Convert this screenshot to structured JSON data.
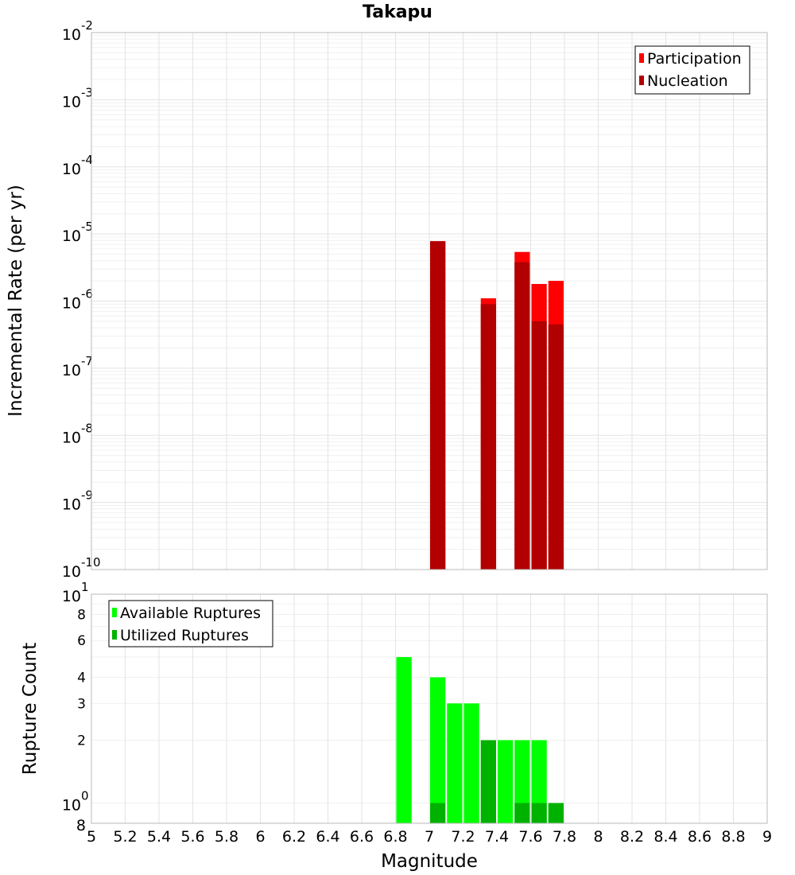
{
  "chart_data": [
    {
      "type": "bar",
      "title": "Takapu",
      "xlabel": "",
      "ylabel": "Incremental Rate (per yr)",
      "yscale": "log",
      "ylim": [
        1e-10,
        0.01
      ],
      "xlim": [
        5,
        9
      ],
      "grid": true,
      "legend_position": "top-right",
      "y_ticks": [
        {
          "base": "10",
          "exp": "-2",
          "value": 0.01
        },
        {
          "base": "10",
          "exp": "-3",
          "value": 0.001
        },
        {
          "base": "10",
          "exp": "-4",
          "value": 0.0001
        },
        {
          "base": "10",
          "exp": "-5",
          "value": 1e-05
        },
        {
          "base": "10",
          "exp": "-6",
          "value": 1e-06
        },
        {
          "base": "10",
          "exp": "-7",
          "value": 1e-07
        },
        {
          "base": "10",
          "exp": "-8",
          "value": 1e-08
        },
        {
          "base": "10",
          "exp": "-9",
          "value": 1e-09
        },
        {
          "base": "10",
          "exp": "-10",
          "value": 1e-10
        }
      ],
      "series": [
        {
          "name": "Participation",
          "color": "#ff0000",
          "points": [
            {
              "x": 7.05,
              "y": 7.8e-06
            },
            {
              "x": 7.35,
              "y": 1.1e-06
            },
            {
              "x": 7.55,
              "y": 5.4e-06
            },
            {
              "x": 7.65,
              "y": 1.8e-06
            },
            {
              "x": 7.75,
              "y": 2e-06
            }
          ]
        },
        {
          "name": "Nucleation",
          "color": "#b20000",
          "points": [
            {
              "x": 7.05,
              "y": 7.8e-06
            },
            {
              "x": 7.35,
              "y": 9e-07
            },
            {
              "x": 7.55,
              "y": 3.8e-06
            },
            {
              "x": 7.65,
              "y": 5e-07
            },
            {
              "x": 7.75,
              "y": 4.5e-07
            }
          ]
        }
      ]
    },
    {
      "type": "bar",
      "title": "",
      "xlabel": "Magnitude",
      "ylabel": "Rupture Count",
      "yscale": "log",
      "ylim": [
        0.8,
        10
      ],
      "xlim": [
        5,
        9
      ],
      "grid": true,
      "legend_position": "top-left",
      "x_ticks": [
        "5",
        "5.2",
        "5.4",
        "5.6",
        "5.8",
        "6",
        "6.2",
        "6.4",
        "6.6",
        "6.8",
        "7",
        "7.2",
        "7.4",
        "7.6",
        "7.8",
        "8",
        "8.2",
        "8.4",
        "8.6",
        "8.8",
        "9"
      ],
      "y_ticks_small": [
        {
          "label": "8",
          "value": 8
        },
        {
          "label": "6",
          "value": 6
        },
        {
          "label": "4",
          "value": 4
        },
        {
          "label": "3",
          "value": 3
        },
        {
          "label": "2",
          "value": 2
        }
      ],
      "y_ticks_power": [
        {
          "base": "10",
          "exp": "1",
          "value": 10
        },
        {
          "base": "10",
          "exp": "0",
          "value": 1
        }
      ],
      "y_bottom_label": "8",
      "series": [
        {
          "name": "Available Ruptures",
          "color": "#00ff00",
          "points": [
            {
              "x": 6.85,
              "y": 5
            },
            {
              "x": 7.05,
              "y": 4
            },
            {
              "x": 7.15,
              "y": 3
            },
            {
              "x": 7.25,
              "y": 3
            },
            {
              "x": 7.35,
              "y": 2
            },
            {
              "x": 7.45,
              "y": 2
            },
            {
              "x": 7.55,
              "y": 2
            },
            {
              "x": 7.65,
              "y": 2
            },
            {
              "x": 7.75,
              "y": 1
            }
          ]
        },
        {
          "name": "Utilized Ruptures",
          "color": "#00b200",
          "points": [
            {
              "x": 7.05,
              "y": 1
            },
            {
              "x": 7.35,
              "y": 2
            },
            {
              "x": 7.55,
              "y": 1
            },
            {
              "x": 7.65,
              "y": 1
            },
            {
              "x": 7.75,
              "y": 1
            }
          ]
        }
      ]
    }
  ]
}
